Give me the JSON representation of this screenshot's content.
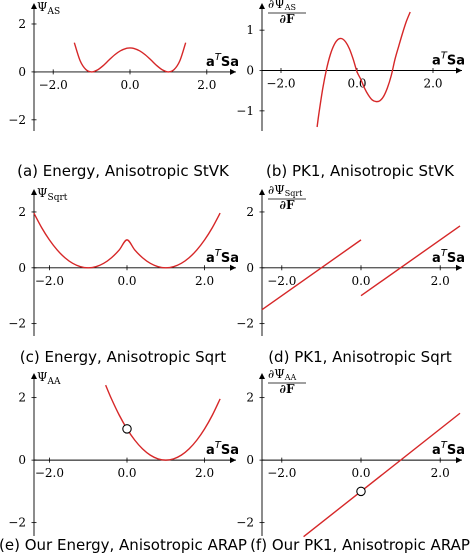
{
  "chart_data": [
    {
      "type": "line",
      "caption": "(a) Energy, Anisotropic StVK",
      "ylabel": "Ψ_AS",
      "ylabel_main": "Ψ",
      "ylabel_sub": "AS",
      "xlabel": "a^T Sa",
      "xlabel_base": "a",
      "xlabel_sup": "T",
      "xlabel_end": "Sa",
      "xlim": [
        -2.5,
        2.5
      ],
      "ylim": [
        -2.3,
        2.5
      ],
      "xticks": [
        -2.0,
        0.0,
        2.0
      ],
      "xtick_labels": [
        "−2.0",
        "0.0",
        "2.0"
      ],
      "yticks": [
        -2,
        0,
        2
      ],
      "ytick_labels": [
        "−2",
        "0",
        "2"
      ],
      "grid": false,
      "series": [
        {
          "x": [
            -1.45,
            -1.3,
            -1.15,
            -1.0,
            -0.85,
            -0.7,
            -0.55,
            -0.4,
            -0.25,
            -0.1,
            0.0,
            0.1,
            0.25,
            0.4,
            0.55,
            0.7,
            0.85,
            1.0,
            1.15,
            1.3,
            1.45
          ],
          "y": [
            1.22,
            0.47,
            0.1,
            0.0,
            0.08,
            0.26,
            0.49,
            0.71,
            0.88,
            0.98,
            1.0,
            0.98,
            0.88,
            0.71,
            0.49,
            0.26,
            0.08,
            0.0,
            0.1,
            0.47,
            1.22
          ],
          "color": "#d62728"
        }
      ]
    },
    {
      "type": "line",
      "caption": "(b) PK1, Anisotropic StVK",
      "ylabel": "∂Ψ_AS/∂F",
      "ylabel_num": "∂Ψ",
      "ylabel_num_sub": "AS",
      "ylabel_den": "∂F",
      "xlabel": "a^T Sa",
      "xlabel_base": "a",
      "xlabel_sup": "T",
      "xlabel_end": "Sa",
      "xlim": [
        -2.5,
        2.5
      ],
      "ylim": [
        -1.4,
        1.45
      ],
      "xticks": [
        -2.0,
        0.0,
        2.0
      ],
      "xtick_labels": [
        "−2.0",
        "0.0",
        "2.0"
      ],
      "yticks": [
        -1,
        0,
        1
      ],
      "ytick_labels": [
        "−1",
        "0",
        "1"
      ],
      "grid": false,
      "series": [
        {
          "x": [
            -1.05,
            -1.0,
            -0.9,
            -0.8,
            -0.7,
            -0.6,
            -0.5,
            -0.4,
            -0.3,
            -0.2,
            -0.1,
            0.0,
            0.1,
            0.2,
            0.3,
            0.4,
            0.5,
            0.6,
            0.7,
            0.8,
            0.9,
            1.0,
            1.1,
            1.2,
            1.3,
            1.4
          ],
          "y": [
            -1.4,
            -1.05,
            -0.44,
            0.04,
            0.4,
            0.64,
            0.77,
            0.79,
            0.71,
            0.54,
            0.28,
            -0.03,
            -0.22,
            -0.44,
            -0.61,
            -0.73,
            -0.77,
            -0.75,
            -0.64,
            -0.43,
            -0.13,
            0.28,
            0.61,
            0.93,
            1.22,
            1.45
          ],
          "color": "#d62728"
        }
      ]
    },
    {
      "type": "line",
      "caption": "(c) Energy, Anisotropic Sqrt",
      "ylabel": "Ψ_Sqrt",
      "ylabel_main": "Ψ",
      "ylabel_sub": "Sqrt",
      "xlabel": "a^T Sa",
      "xlabel_base": "a",
      "xlabel_sup": "T",
      "xlabel_end": "Sa",
      "xlim": [
        -2.5,
        2.5
      ],
      "ylim": [
        -2.3,
        2.5
      ],
      "xticks": [
        -2.0,
        0.0,
        2.0
      ],
      "xtick_labels": [
        "−2.0",
        "0.0",
        "2.0"
      ],
      "yticks": [
        -2,
        0,
        2
      ],
      "ytick_labels": [
        "−2",
        "0",
        "2"
      ],
      "grid": false,
      "series": [
        {
          "x": [
            -2.4,
            -2.2,
            -2.0,
            -1.8,
            -1.6,
            -1.4,
            -1.2,
            -1.0,
            -0.8,
            -0.6,
            -0.4,
            -0.2,
            0.0,
            0.2,
            0.4,
            0.6,
            0.8,
            1.0,
            1.2,
            1.4,
            1.6,
            1.8,
            2.0,
            2.2,
            2.4
          ],
          "y": [
            1.96,
            1.44,
            1.0,
            0.64,
            0.36,
            0.16,
            0.04,
            0.0,
            0.04,
            0.16,
            0.36,
            0.64,
            1.0,
            0.64,
            0.36,
            0.16,
            0.04,
            0.0,
            0.04,
            0.16,
            0.36,
            0.64,
            1.0,
            1.44,
            1.96
          ],
          "color": "#d62728"
        }
      ]
    },
    {
      "type": "line",
      "caption": "(d) PK1, Anisotropic Sqrt",
      "ylabel": "∂Ψ_Sqrt/∂F",
      "ylabel_num": "∂Ψ",
      "ylabel_num_sub": "Sqrt",
      "ylabel_den": "∂F",
      "xlabel": "a^T Sa",
      "xlabel_base": "a",
      "xlabel_sup": "T",
      "xlabel_end": "Sa",
      "xlim": [
        -2.5,
        2.5
      ],
      "ylim": [
        -2.3,
        2.5
      ],
      "xticks": [
        -2.0,
        0.0,
        2.0
      ],
      "xtick_labels": [
        "−2.0",
        "0.0",
        "2.0"
      ],
      "yticks": [
        -2,
        0,
        2
      ],
      "ytick_labels": [
        "−2",
        "0",
        "2"
      ],
      "grid": false,
      "series": [
        {
          "x": [
            -2.5,
            0.0
          ],
          "y": [
            -1.5,
            1.0
          ],
          "color": "#d62728"
        },
        {
          "x": [
            0.0,
            2.5
          ],
          "y": [
            -1.0,
            1.5
          ],
          "color": "#d62728"
        }
      ]
    },
    {
      "type": "line",
      "caption": "(e) Our Energy, Anisotropic ARAP",
      "ylabel": "Ψ_AA",
      "ylabel_main": "Ψ",
      "ylabel_sub": "AA",
      "xlabel": "a^T Sa",
      "xlabel_base": "a",
      "xlabel_sup": "T",
      "xlabel_end": "Sa",
      "xlim": [
        -2.5,
        2.5
      ],
      "ylim": [
        -2.3,
        2.5
      ],
      "xticks": [
        -2.0,
        0.0,
        2.0
      ],
      "xtick_labels": [
        "−2.0",
        "0.0",
        "2.0"
      ],
      "yticks": [
        -2,
        0,
        2
      ],
      "ytick_labels": [
        "−2",
        "0",
        "2"
      ],
      "grid": false,
      "series": [
        {
          "x": [
            -0.55,
            -0.4,
            -0.2,
            0.0,
            0.2,
            0.4,
            0.6,
            0.8,
            1.0,
            1.2,
            1.4,
            1.6,
            1.8,
            2.0,
            2.2,
            2.4
          ],
          "y": [
            2.4,
            1.96,
            1.44,
            1.0,
            0.64,
            0.36,
            0.16,
            0.04,
            0.0,
            0.04,
            0.16,
            0.36,
            0.64,
            1.0,
            1.44,
            1.96
          ],
          "color": "#d62728"
        }
      ],
      "markers": [
        {
          "x": 0.0,
          "y": 1.0,
          "style": "open-circle"
        }
      ]
    },
    {
      "type": "line",
      "caption": "(f) Our PK1, Anisotropic ARAP",
      "ylabel": "∂Ψ_AA/∂F",
      "ylabel_num": "∂Ψ",
      "ylabel_num_sub": "AA",
      "ylabel_den": "∂F",
      "xlabel": "a^T Sa",
      "xlabel_base": "a",
      "xlabel_sup": "T",
      "xlabel_end": "Sa",
      "xlim": [
        -2.5,
        2.5
      ],
      "ylim": [
        -2.3,
        2.5
      ],
      "xticks": [
        -2.0,
        0.0,
        2.0
      ],
      "xtick_labels": [
        "−2.0",
        "0.0",
        "2.0"
      ],
      "yticks": [
        -2,
        0,
        2
      ],
      "ytick_labels": [
        "−2",
        "0",
        "2"
      ],
      "grid": false,
      "series": [
        {
          "x": [
            -1.45,
            2.5
          ],
          "y": [
            -2.45,
            1.5
          ],
          "color": "#d62728"
        }
      ],
      "markers": [
        {
          "x": 0.0,
          "y": -1.0,
          "style": "open-circle"
        }
      ]
    }
  ]
}
